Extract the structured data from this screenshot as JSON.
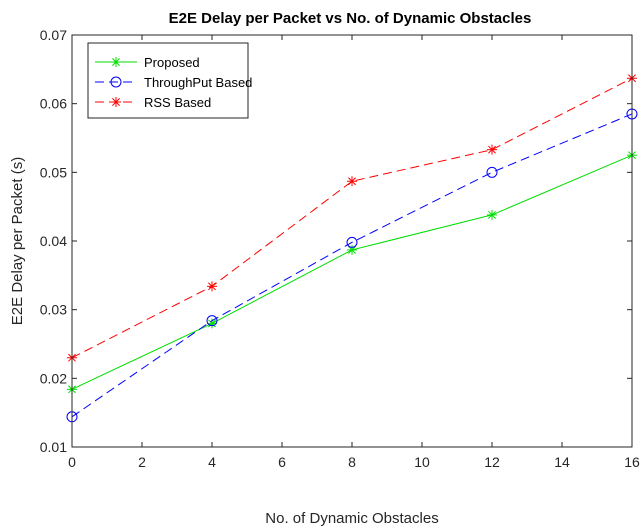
{
  "chart_data": {
    "type": "line",
    "title": "E2E Delay per Packet vs No. of Dynamic Obstacles",
    "xlabel": "No. of Dynamic Obstacles",
    "ylabel": "E2E Delay per Packet (s)",
    "xlim": [
      0,
      16
    ],
    "ylim": [
      0.01,
      0.07
    ],
    "xticks": [
      0,
      2,
      4,
      6,
      8,
      10,
      12,
      14,
      16
    ],
    "yticks": [
      0.01,
      0.02,
      0.03,
      0.04,
      0.05,
      0.06,
      0.07
    ],
    "ytick_labels": [
      "0.01",
      "0.02",
      "0.03",
      "0.04",
      "0.05",
      "0.06",
      "0.07"
    ],
    "grid": false,
    "legend_position": "top-left",
    "x": [
      0,
      4,
      8,
      12,
      16
    ],
    "series": [
      {
        "name": "Proposed",
        "values": [
          0.0184,
          0.028,
          0.0387,
          0.0438,
          0.0525
        ],
        "color": "#00dd00",
        "marker": "asterisk",
        "dash": "solid"
      },
      {
        "name": "ThroughPut Based",
        "values": [
          0.0144,
          0.0284,
          0.0398,
          0.05,
          0.0585
        ],
        "color": "#0000ff",
        "marker": "circle",
        "dash": "dashed"
      },
      {
        "name": "RSS Based",
        "values": [
          0.023,
          0.0334,
          0.0487,
          0.0533,
          0.0637
        ],
        "color": "#ff0000",
        "marker": "asterisk",
        "dash": "dashed"
      }
    ]
  }
}
